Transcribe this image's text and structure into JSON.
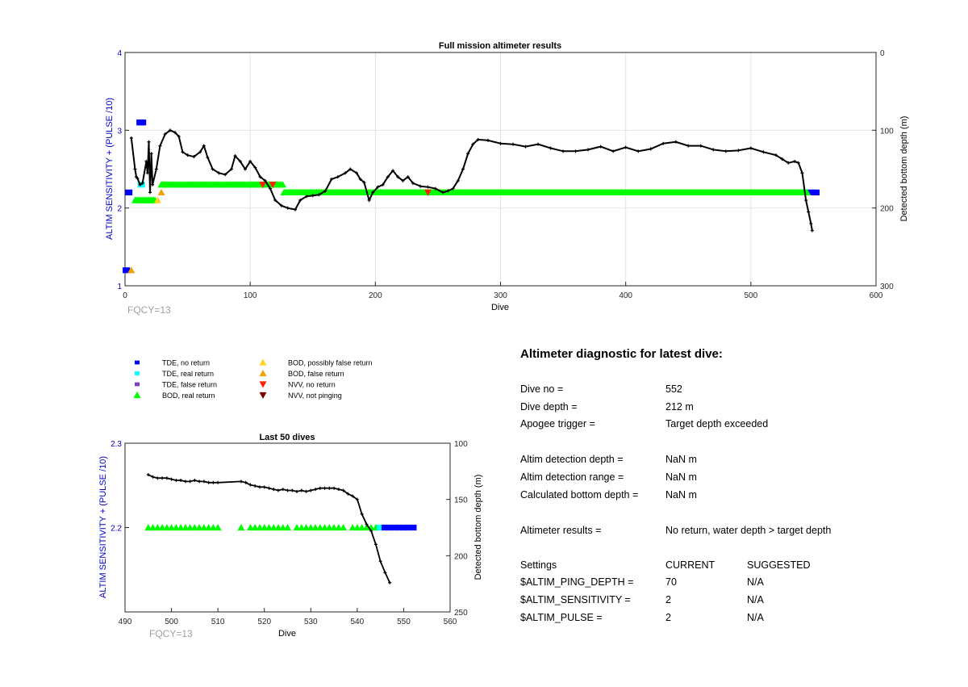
{
  "top_chart_title": "Full mission altimeter results",
  "bottom_chart_title": "Last 50 dives",
  "fqcy_label_top": "FQCY=13",
  "fqcy_label_bottom": "FQCY=13",
  "colors": {
    "tde_no_return": "#0000ff",
    "tde_real_return": "#00ffff",
    "tde_false_return": "#8040c0",
    "bod_real_return": "#00ff00",
    "bod_possibly_false": "#ffd11a",
    "bod_false": "#f0a000",
    "nvv_no_return": "#ff2000",
    "nvv_not_pinging": "#7a0000",
    "depth_line": "#000000",
    "left_axis_label": "#0000c8"
  },
  "legend": {
    "col1": [
      "TDE, no return",
      "TDE, real return",
      "TDE, false return",
      "BOD, real return"
    ],
    "col2": [
      "BOD, possibly false return",
      "BOD, false return",
      "NVV, no return",
      "NVV, not pinging"
    ]
  },
  "chart_data": [
    {
      "type": "scatter",
      "title": "Full mission altimeter results",
      "xlabel": "Dive",
      "ylabel_left": "ALTIM SENSITIVITY + (PULSE /10)",
      "ylabel_right": "Detected bottom depth (m)",
      "xlim": [
        0,
        600
      ],
      "ylim_left": [
        1,
        4
      ],
      "ylim_right": [
        300,
        0
      ],
      "x_ticks": [
        "0",
        "100",
        "200",
        "300",
        "400",
        "500",
        "600"
      ],
      "y_left_ticks": [
        "1",
        "2",
        "3",
        "4"
      ],
      "y_right_ticks": [
        "300",
        "200",
        "100",
        "0"
      ],
      "grid": true,
      "series": [
        {
          "name": "TDE, no return",
          "points": [
            [
              1,
              1.2
            ],
            [
              3,
              2.2
            ],
            [
              12,
              3.1
            ],
            [
              14,
              3.1
            ],
            [
              548,
              2.2
            ],
            [
              552,
              2.2
            ]
          ]
        },
        {
          "name": "TDE, real return",
          "points": [
            [
              13,
              2.3
            ]
          ]
        },
        {
          "name": "BOD, real return",
          "ranges": [
            [
              8,
              24,
              2.1
            ],
            [
              29,
              126,
              2.3
            ],
            [
              127,
              545,
              2.2
            ]
          ]
        },
        {
          "name": "BOD, possibly false return",
          "points": [
            [
              26,
              2.1
            ]
          ]
        },
        {
          "name": "BOD, false return",
          "points": [
            [
              5,
              1.2
            ],
            [
              29,
              2.2
            ]
          ]
        },
        {
          "name": "NVV, no return",
          "points": [
            [
              110,
              2.3
            ],
            [
              118,
              2.3
            ],
            [
              242,
              2.2
            ]
          ]
        },
        {
          "name": "Detected bottom depth (m)",
          "axis": "right",
          "points": [
            [
              5,
              110
            ],
            [
              8,
              150
            ],
            [
              9,
              160
            ],
            [
              10,
              162
            ],
            [
              12,
              170
            ],
            [
              14,
              168
            ],
            [
              17,
              140
            ],
            [
              18,
              155
            ],
            [
              19,
              115
            ],
            [
              20,
              180
            ],
            [
              21,
              130
            ],
            [
              22,
              170
            ],
            [
              25,
              150
            ],
            [
              28,
              120
            ],
            [
              32,
              105
            ],
            [
              36,
              100
            ],
            [
              40,
              103
            ],
            [
              43,
              108
            ],
            [
              46,
              128
            ],
            [
              50,
              132
            ],
            [
              55,
              134
            ],
            [
              60,
              128
            ],
            [
              63,
              120
            ],
            [
              66,
              135
            ],
            [
              70,
              150
            ],
            [
              75,
              155
            ],
            [
              80,
              157
            ],
            [
              85,
              150
            ],
            [
              88,
              133
            ],
            [
              92,
              140
            ],
            [
              96,
              150
            ],
            [
              100,
              140
            ],
            [
              104,
              148
            ],
            [
              108,
              160
            ],
            [
              112,
              165
            ],
            [
              116,
              175
            ],
            [
              120,
              190
            ],
            [
              125,
              197
            ],
            [
              130,
              200
            ],
            [
              136,
              202
            ],
            [
              140,
              190
            ],
            [
              145,
              185
            ],
            [
              150,
              184
            ],
            [
              155,
              183
            ],
            [
              160,
              178
            ],
            [
              165,
              163
            ],
            [
              170,
              160
            ],
            [
              176,
              155
            ],
            [
              180,
              150
            ],
            [
              185,
              155
            ],
            [
              188,
              163
            ],
            [
              191,
              167
            ],
            [
              195,
              190
            ],
            [
              198,
              180
            ],
            [
              202,
              173
            ],
            [
              206,
              170
            ],
            [
              210,
              160
            ],
            [
              214,
              152
            ],
            [
              218,
              160
            ],
            [
              222,
              165
            ],
            [
              226,
              160
            ],
            [
              230,
              168
            ],
            [
              236,
              172
            ],
            [
              242,
              173
            ],
            [
              248,
              175
            ],
            [
              254,
              180
            ],
            [
              258,
              178
            ],
            [
              262,
              175
            ],
            [
              266,
              165
            ],
            [
              270,
              150
            ],
            [
              274,
              130
            ],
            [
              278,
              118
            ],
            [
              282,
              112
            ],
            [
              290,
              113
            ],
            [
              300,
              117
            ],
            [
              310,
              118
            ],
            [
              320,
              121
            ],
            [
              330,
              118
            ],
            [
              340,
              123
            ],
            [
              350,
              127
            ],
            [
              360,
              127
            ],
            [
              370,
              125
            ],
            [
              380,
              121
            ],
            [
              390,
              127
            ],
            [
              400,
              122
            ],
            [
              410,
              127
            ],
            [
              420,
              124
            ],
            [
              430,
              117
            ],
            [
              440,
              115
            ],
            [
              450,
              120
            ],
            [
              460,
              120
            ],
            [
              470,
              125
            ],
            [
              480,
              127
            ],
            [
              490,
              126
            ],
            [
              500,
              123
            ],
            [
              510,
              128
            ],
            [
              520,
              132
            ],
            [
              525,
              137
            ],
            [
              530,
              142
            ],
            [
              535,
              140
            ],
            [
              538,
              142
            ],
            [
              541,
              155
            ],
            [
              544,
              190
            ],
            [
              546,
              205
            ],
            [
              548,
              220
            ],
            [
              549,
              229
            ]
          ]
        }
      ]
    },
    {
      "type": "scatter",
      "title": "Last 50 dives",
      "xlabel": "Dive",
      "ylabel_left": "ALTIM SENSITIVITY + (PULSE /10)",
      "ylabel_right": "Detected bottom depth (m)",
      "xlim": [
        490,
        560
      ],
      "ylim_left": [
        2.1,
        2.3
      ],
      "ylim_right": [
        250,
        100
      ],
      "x_ticks": [
        "490",
        "500",
        "510",
        "520",
        "530",
        "540",
        "550",
        "560"
      ],
      "y_left_ticks": [
        "2.2",
        "2.3"
      ],
      "y_right_ticks": [
        "250",
        "200",
        "150",
        "100"
      ],
      "grid": false,
      "series": [
        {
          "name": "BOD, real return",
          "points": [
            [
              495,
              2.2
            ],
            [
              496,
              2.2
            ],
            [
              497,
              2.2
            ],
            [
              498,
              2.2
            ],
            [
              499,
              2.2
            ],
            [
              500,
              2.2
            ],
            [
              501,
              2.2
            ],
            [
              502,
              2.2
            ],
            [
              503,
              2.2
            ],
            [
              504,
              2.2
            ],
            [
              505,
              2.2
            ],
            [
              506,
              2.2
            ],
            [
              507,
              2.2
            ],
            [
              508,
              2.2
            ],
            [
              509,
              2.2
            ],
            [
              510,
              2.2
            ],
            [
              515,
              2.2
            ],
            [
              517,
              2.2
            ],
            [
              518,
              2.2
            ],
            [
              519,
              2.2
            ],
            [
              520,
              2.2
            ],
            [
              521,
              2.2
            ],
            [
              522,
              2.2
            ],
            [
              523,
              2.2
            ],
            [
              524,
              2.2
            ],
            [
              525,
              2.2
            ],
            [
              527,
              2.2
            ],
            [
              528,
              2.2
            ],
            [
              529,
              2.2
            ],
            [
              530,
              2.2
            ],
            [
              531,
              2.2
            ],
            [
              532,
              2.2
            ],
            [
              533,
              2.2
            ],
            [
              534,
              2.2
            ],
            [
              535,
              2.2
            ],
            [
              536,
              2.2
            ],
            [
              537,
              2.2
            ],
            [
              539,
              2.2
            ],
            [
              540,
              2.2
            ],
            [
              541,
              2.2
            ],
            [
              542,
              2.2
            ],
            [
              543,
              2.2
            ],
            [
              544,
              2.2
            ]
          ]
        },
        {
          "name": "TDE, real return",
          "points": [
            [
              545,
              2.2
            ]
          ]
        },
        {
          "name": "TDE, no return",
          "points": [
            [
              546,
              2.2
            ],
            [
              547,
              2.2
            ],
            [
              548,
              2.2
            ],
            [
              549,
              2.2
            ],
            [
              550,
              2.2
            ],
            [
              551,
              2.2
            ],
            [
              552,
              2.2
            ]
          ]
        },
        {
          "name": "Detected bottom depth (m)",
          "axis": "right",
          "points": [
            [
              495,
              128
            ],
            [
              496,
              130
            ],
            [
              497,
              131
            ],
            [
              498,
              131
            ],
            [
              499,
              131
            ],
            [
              500,
              132
            ],
            [
              501,
              133
            ],
            [
              502,
              133
            ],
            [
              503,
              134
            ],
            [
              504,
              134
            ],
            [
              505,
              133
            ],
            [
              506,
              134
            ],
            [
              507,
              134
            ],
            [
              508,
              135
            ],
            [
              509,
              135
            ],
            [
              510,
              135
            ],
            [
              515,
              134
            ],
            [
              516,
              135
            ],
            [
              517,
              137
            ],
            [
              518,
              138
            ],
            [
              519,
              139
            ],
            [
              520,
              139
            ],
            [
              521,
              140
            ],
            [
              522,
              141
            ],
            [
              523,
              142
            ],
            [
              524,
              141
            ],
            [
              525,
              142
            ],
            [
              526,
              142
            ],
            [
              527,
              143
            ],
            [
              528,
              142
            ],
            [
              529,
              143
            ],
            [
              530,
              142
            ],
            [
              531,
              141
            ],
            [
              532,
              140
            ],
            [
              533,
              140
            ],
            [
              534,
              140
            ],
            [
              535,
              140
            ],
            [
              536,
              141
            ],
            [
              537,
              142
            ],
            [
              538,
              145
            ],
            [
              539,
              147
            ],
            [
              540,
              150
            ],
            [
              541,
              163
            ],
            [
              542,
              172
            ],
            [
              543,
              178
            ],
            [
              544,
              190
            ],
            [
              545,
              205
            ],
            [
              546,
              215
            ],
            [
              547,
              224
            ]
          ]
        }
      ]
    }
  ],
  "diagnostic": {
    "title": "Altimeter diagnostic for latest dive:",
    "rows": [
      {
        "label": "Dive no =",
        "value": "552"
      },
      {
        "label": "Dive depth =",
        "value": "212 m"
      },
      {
        "label": "Apogee trigger =",
        "value": "Target depth exceeded"
      },
      {
        "label": "Altim detection depth =",
        "value": "NaN m"
      },
      {
        "label": "Altim detection range =",
        "value": "NaN m"
      },
      {
        "label": "Calculated bottom depth =",
        "value": "NaN m"
      },
      {
        "label": "Altimeter results =",
        "value": "No return, water depth > target depth"
      }
    ],
    "settings_header": {
      "label": "Settings",
      "current": "CURRENT",
      "suggested": "SUGGESTED"
    },
    "settings": [
      {
        "label": "$ALTIM_PING_DEPTH =",
        "current": "70",
        "suggested": "N/A"
      },
      {
        "label": "$ALTIM_SENSITIVITY =",
        "current": "2",
        "suggested": "N/A"
      },
      {
        "label": "$ALTIM_PULSE =",
        "current": "2",
        "suggested": "N/A"
      }
    ]
  }
}
